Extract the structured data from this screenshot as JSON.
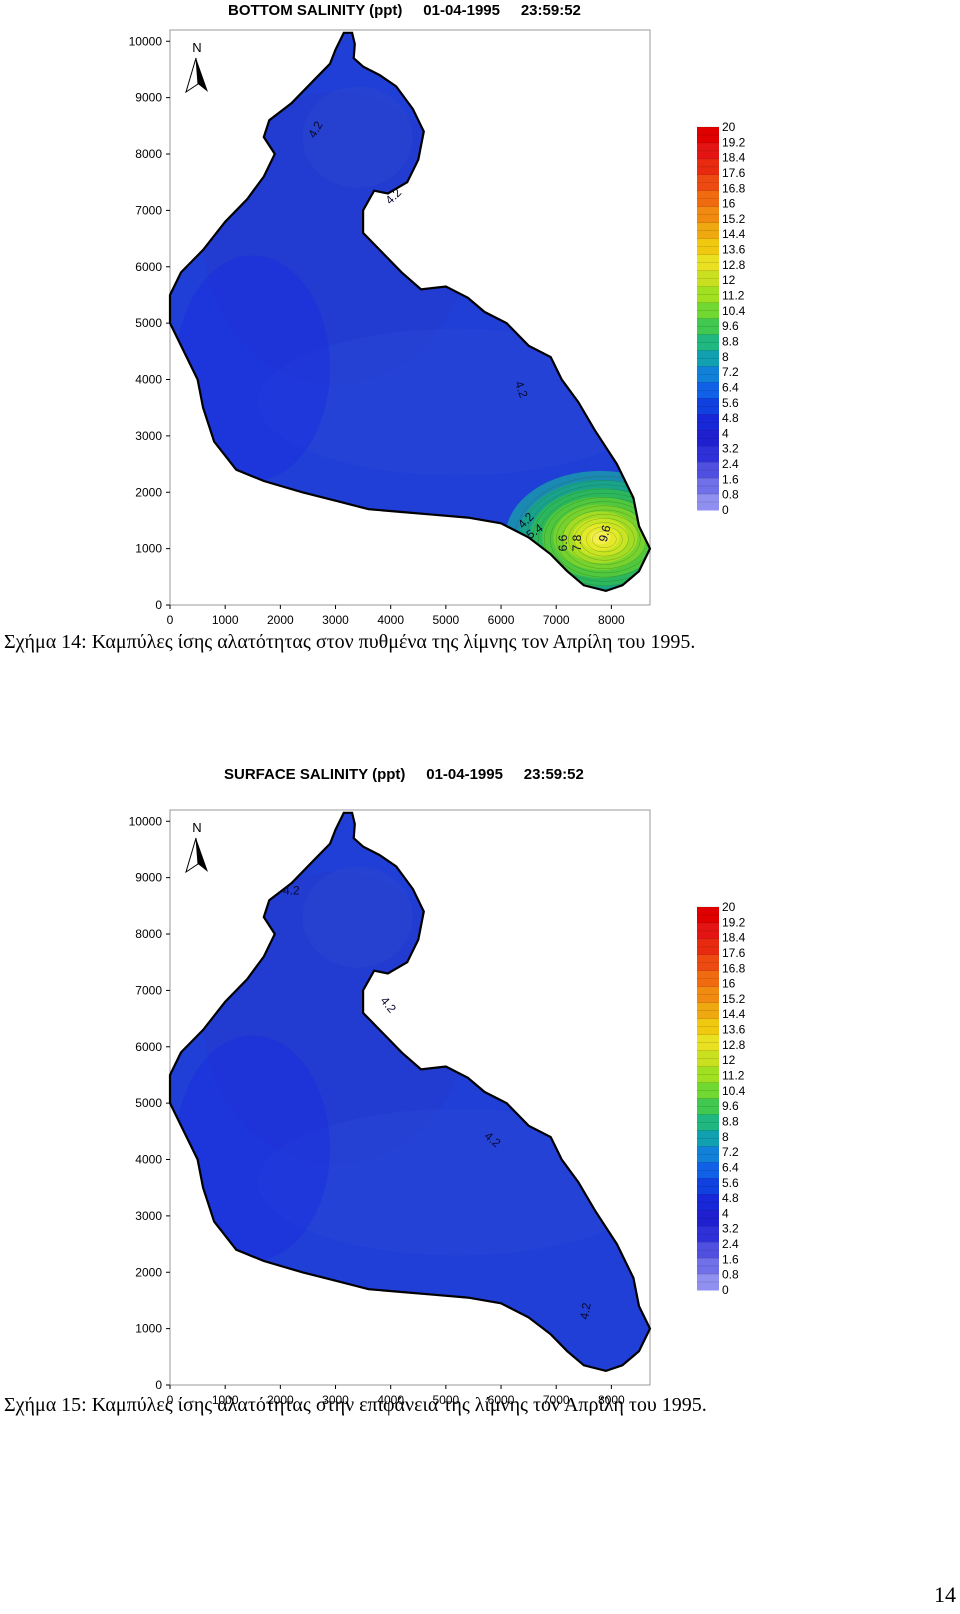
{
  "figures": [
    {
      "title": "BOTTOM SALINITY (ppt)     01-04-1995     23:59:52",
      "caption": "Σχήμα  14: Καμπύλες ίσης αλατότητας στον πυθμένα της λίμνης τον Απρίλη του 1995.",
      "north_label": "N",
      "contour_labels": [
        "4.2",
        "4.2",
        "4.2",
        "4.2",
        "5.4",
        "6.6",
        "7.8",
        "9.6"
      ],
      "chart_data": {
        "type": "heatmap",
        "x_ticks": [
          "0",
          "1000",
          "2000",
          "3000",
          "4000",
          "5000",
          "6000",
          "7000",
          "8000"
        ],
        "y_ticks": [
          "0",
          "1000",
          "2000",
          "3000",
          "4000",
          "5000",
          "6000",
          "7000",
          "8000",
          "9000",
          "10000"
        ],
        "xlim": [
          0,
          8700
        ],
        "ylim": [
          0,
          10200
        ],
        "colorbar_labels": [
          "20",
          "19.2",
          "18.4",
          "17.6",
          "16.8",
          "16",
          "15.2",
          "14.4",
          "13.6",
          "12.8",
          "12",
          "11.2",
          "10.4",
          "9.6",
          "8.8",
          "8",
          "7.2",
          "6.4",
          "5.6",
          "4.8",
          "4",
          "3.2",
          "2.4",
          "1.6",
          "0.8",
          "0"
        ],
        "hotspot": {
          "x": 7800,
          "y": 1200,
          "max_value": 9.6
        }
      }
    },
    {
      "title": "SURFACE SALINITY (ppt)     01-04-1995     23:59:52",
      "caption": "Σχήμα  15: Καμπύλες ίσης αλατότητας στην επιφάνεια της λίμνης τον Απρίλη του 1995.",
      "north_label": "N",
      "contour_labels": [
        "4.2",
        "4.2",
        "4.2",
        "4.2"
      ],
      "chart_data": {
        "type": "heatmap",
        "x_ticks": [
          "0",
          "1000",
          "2000",
          "3000",
          "4000",
          "5000",
          "6000",
          "7000",
          "8000"
        ],
        "y_ticks": [
          "0",
          "1000",
          "2000",
          "3000",
          "4000",
          "5000",
          "6000",
          "7000",
          "8000",
          "9000",
          "10000"
        ],
        "xlim": [
          0,
          8700
        ],
        "ylim": [
          0,
          10200
        ],
        "colorbar_labels": [
          "20",
          "19.2",
          "18.4",
          "17.6",
          "16.8",
          "16",
          "15.2",
          "14.4",
          "13.6",
          "12.8",
          "12",
          "11.2",
          "10.4",
          "9.6",
          "8.8",
          "8",
          "7.2",
          "6.4",
          "5.6",
          "4.8",
          "4",
          "3.2",
          "2.4",
          "1.6",
          "0.8",
          "0"
        ]
      }
    }
  ],
  "page_number": "14",
  "colors": {
    "lake_base": "#1f3fd6",
    "lake_edge": "#000000",
    "colorbar": [
      "#e00000",
      "#e41414",
      "#e82a10",
      "#ec4a10",
      "#f06a10",
      "#f08a10",
      "#f0a810",
      "#f0c810",
      "#e8e020",
      "#c8e020",
      "#a0e020",
      "#70d830",
      "#40c850",
      "#20b880",
      "#10a0b0",
      "#1080d8",
      "#1060e8",
      "#1040e0",
      "#1828d8",
      "#2020d0",
      "#3030d8",
      "#5050e0",
      "#7070e8",
      "#9090f0"
    ]
  }
}
